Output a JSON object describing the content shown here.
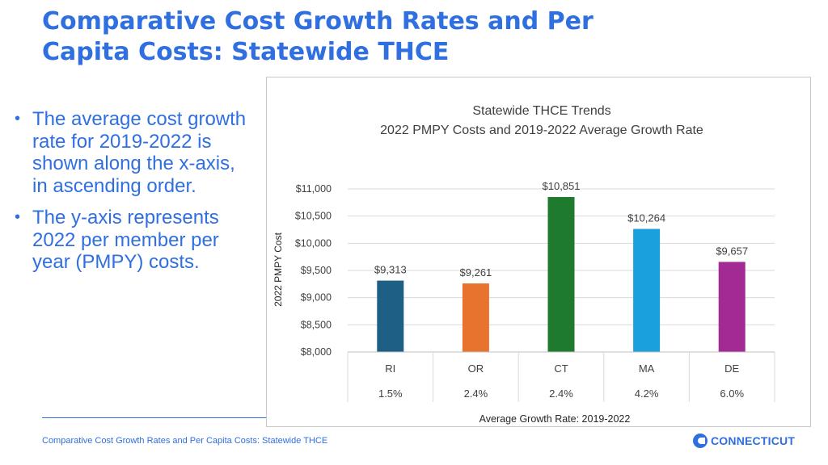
{
  "slide": {
    "title_line1": "Comparative Cost Growth Rates and Per",
    "title_line2": "Capita Costs: Statewide THCE",
    "bullets": [
      "The average cost growth rate for 2019-2022 is shown along the x-axis, in ascending order.",
      "The y-axis represents 2022 per member per year (PMPY) costs."
    ],
    "footer_text": "Comparative Cost Growth Rates and Per Capita Costs: Statewide THCE",
    "logo_text": "CONNECTICUT",
    "bullet_glyph": "•"
  },
  "colors": {
    "accent": "#2f6fe0",
    "RI": "#1d5f85",
    "OR": "#e8732f",
    "CT": "#1e7a2c",
    "MA": "#1aa0dc",
    "DE": "#a32a94"
  },
  "chart_data": {
    "type": "bar",
    "title": "Statewide THCE Trends",
    "subtitle": "2022 PMPY Costs and 2019-2022 Average Growth Rate",
    "ylabel": "2022 PMPY Cost",
    "xlabel": "Average Growth Rate: 2019-2022",
    "ylim": [
      8000,
      11000
    ],
    "yticks": [
      8000,
      8500,
      9000,
      9500,
      10000,
      10500,
      11000
    ],
    "ytick_labels": [
      "$8,000",
      "$8,500",
      "$9,000",
      "$9,500",
      "$10,000",
      "$10,500",
      "$11,000"
    ],
    "categories": [
      "RI",
      "OR",
      "CT",
      "MA",
      "DE"
    ],
    "growth_rates": [
      "1.5%",
      "2.4%",
      "2.4%",
      "4.2%",
      "6.0%"
    ],
    "values": [
      9313,
      9261,
      10851,
      10264,
      9657
    ],
    "value_labels": [
      "$9,313",
      "$9,261",
      "$10,851",
      "$10,264",
      "$9,657"
    ],
    "gridlines": true
  }
}
